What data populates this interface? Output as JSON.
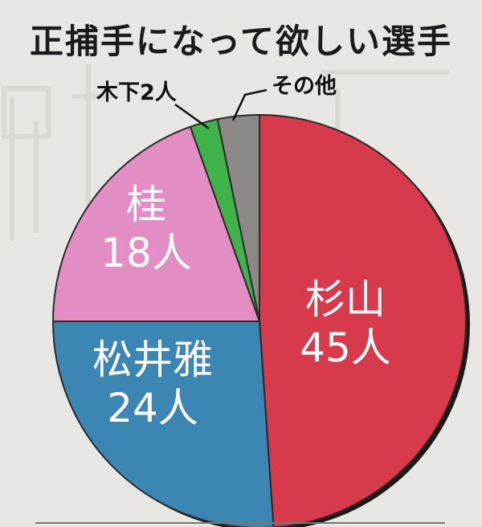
{
  "title": "正捕手になって欲しい選手",
  "chart_data": {
    "type": "pie",
    "title": "正捕手になって欲しい選手",
    "slices": [
      {
        "name": "杉山",
        "value": 45,
        "value_label": "45人",
        "color": "#d63a4b",
        "label_style": "inside"
      },
      {
        "name": "松井雅",
        "value": 24,
        "value_label": "24人",
        "color": "#3c86b3",
        "label_style": "inside"
      },
      {
        "name": "桂",
        "value": 18,
        "value_label": "18人",
        "color": "#e28ec5",
        "label_style": "inside"
      },
      {
        "name": "木下",
        "value": 2,
        "value_label": "2人",
        "color": "#3fb34a",
        "label_style": "outside",
        "outside_text": "木下2人"
      },
      {
        "name": "その他",
        "value": 3,
        "value_label": "",
        "color": "#8b8885",
        "label_style": "outside",
        "outside_text": "その他"
      }
    ]
  }
}
